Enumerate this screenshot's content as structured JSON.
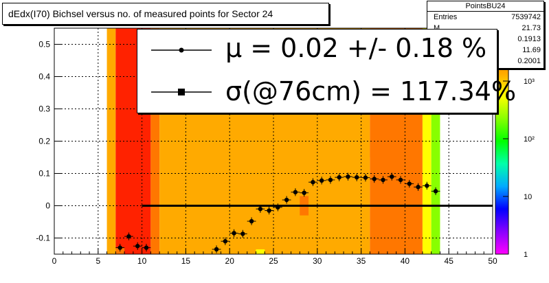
{
  "title": "dEdx(I70) Bichsel versus no. of measured points for Sector 24",
  "stats": {
    "name": "PointsBU24",
    "rows": [
      {
        "key": "Entries",
        "value": "7539742"
      },
      {
        "key": "M",
        "value": "21.73"
      },
      {
        "key": "",
        "value": "0.1913"
      },
      {
        "key": "",
        "value": "11.69"
      },
      {
        "key": "",
        "value": "0.2001"
      }
    ]
  },
  "legend": {
    "mu_text": "μ  =  0.02 +/-  0.18 %",
    "sigma_text": "σ(@76cm) = 117.34%"
  },
  "colors": {
    "orange": "#ffaa00",
    "dark_orange": "#ff7700",
    "red": "#ff2200",
    "yellow": "#ffff00",
    "green": "#88ff00",
    "frame": "#000000"
  },
  "chart_data": {
    "type": "scatter",
    "title": "dEdx(I70) Bichsel versus no. of measured points for Sector 24",
    "xlim": [
      0,
      50
    ],
    "ylim": [
      -0.15,
      0.55
    ],
    "xticks": [
      0,
      5,
      10,
      15,
      20,
      25,
      30,
      35,
      40,
      45,
      50
    ],
    "yticks": [
      -0.1,
      0,
      0.1,
      0.2,
      0.3,
      0.4,
      0.5
    ],
    "ytick_labels": [
      "-0.1",
      "0",
      "0.1",
      "0.2",
      "0.3",
      "0.4",
      "0.5"
    ],
    "grid": true,
    "heatmap_background": {
      "colorbar_ticks": [
        "1",
        "10",
        "10²",
        "10³"
      ],
      "columns": [
        {
          "x": [
            6,
            7
          ],
          "level": "orange"
        },
        {
          "x": [
            7,
            11
          ],
          "level": "red"
        },
        {
          "x": [
            11,
            12
          ],
          "level": "dark_orange"
        },
        {
          "x": [
            12,
            36
          ],
          "level": "orange"
        },
        {
          "x": [
            36,
            42
          ],
          "level": "dark_orange"
        },
        {
          "x": [
            42,
            43
          ],
          "level": "yellow"
        },
        {
          "x": [
            43,
            44
          ],
          "level": "green"
        }
      ]
    },
    "series": [
      {
        "x": [
          7.5,
          8.5,
          9.5,
          10.5,
          18.5,
          19.5,
          20.5,
          21.5,
          22.5,
          23.5,
          24.5,
          25.5,
          26.5,
          27.5,
          28.5,
          29.5,
          30.5,
          31.5,
          32.5,
          33.5,
          34.5,
          35.5,
          36.5,
          37.5,
          38.5,
          39.5,
          40.5,
          41.5,
          42.5,
          43.5
        ],
        "y": [
          -0.13,
          -0.095,
          -0.125,
          -0.13,
          -0.135,
          -0.11,
          -0.085,
          -0.087,
          -0.048,
          -0.01,
          -0.015,
          -0.005,
          0.018,
          0.042,
          0.04,
          0.073,
          0.078,
          0.08,
          0.088,
          0.09,
          0.088,
          0.087,
          0.083,
          0.08,
          0.09,
          0.08,
          0.068,
          0.058,
          0.062,
          0.045
        ],
        "yerr": 0.012
      }
    ],
    "reference_line": {
      "y": 0,
      "x": [
        10,
        50
      ]
    }
  }
}
